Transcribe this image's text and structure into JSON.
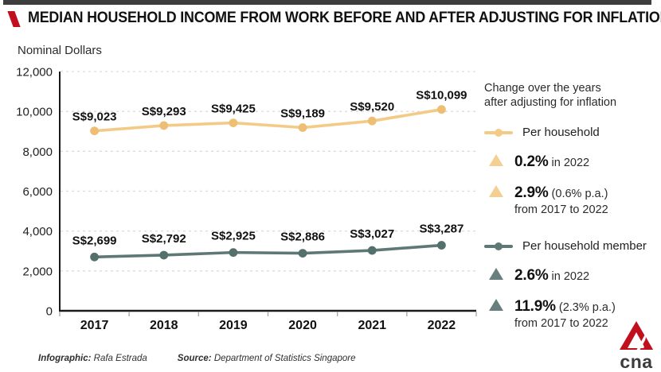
{
  "page": {
    "title": "MEDIAN HOUSEHOLD INCOME FROM WORK BEFORE AND AFTER ADJUSTING FOR INFLATION",
    "units_label": "Nominal Dollars",
    "top_bar_color": "#3D3D3D",
    "accent_red": "#C0101E",
    "footer": {
      "infographic_label": "Infographic:",
      "infographic_value": "Rafa Estrada",
      "source_label": "Source:",
      "source_value": "Department of Statistics Singapore"
    },
    "logo_text": "cna"
  },
  "chart_data": {
    "type": "line",
    "title": "Median household income from work before and after adjusting for inflation",
    "ylabel": "Nominal Dollars",
    "categories": [
      "2017",
      "2018",
      "2019",
      "2020",
      "2021",
      "2022"
    ],
    "series": [
      {
        "name": "Per household",
        "color": "#F3CB87",
        "marker_color": "#EDBE74",
        "values": [
          9023,
          9293,
          9425,
          9189,
          9520,
          10099
        ],
        "labels": [
          "S$9,023",
          "S$9,293",
          "S$9,425",
          "S$9,189",
          "S$9,520",
          "S$10,099"
        ]
      },
      {
        "name": "Per household member",
        "color": "#5E7875",
        "marker_color": "#53706C",
        "values": [
          2699,
          2792,
          2925,
          2886,
          3027,
          3287
        ],
        "labels": [
          "S$2,699",
          "S$2,792",
          "S$2,925",
          "S$2,886",
          "S$3,027",
          "S$3,287"
        ]
      }
    ],
    "ylim": [
      0,
      12000
    ],
    "yticks": [
      0,
      2000,
      4000,
      6000,
      8000,
      10000,
      12000
    ],
    "ytick_labels": [
      "0",
      "2,000",
      "4,000",
      "6,000",
      "8,000",
      "10,000",
      "12,000"
    ],
    "grid": "horizontal-dashed",
    "legend_position": "right"
  },
  "legend": {
    "heading_line1": "Change over the years",
    "heading_line2": "after adjusting for inflation",
    "groups": [
      {
        "name": "Per household",
        "color": "#F3CB87",
        "triangle_color": "#F4CF92",
        "stats": [
          {
            "value": "0.2%",
            "detail": "in 2022",
            "detail2": ""
          },
          {
            "value": "2.9%",
            "detail": "(0.6% p.a.)",
            "detail2": "from 2017 to 2022"
          }
        ]
      },
      {
        "name": "Per household member",
        "color": "#5E7875",
        "triangle_color": "#68807D",
        "stats": [
          {
            "value": "2.6%",
            "detail": "in 2022",
            "detail2": ""
          },
          {
            "value": "11.9%",
            "detail": "(2.3% p.a.)",
            "detail2": "from 2017 to 2022"
          }
        ]
      }
    ]
  }
}
